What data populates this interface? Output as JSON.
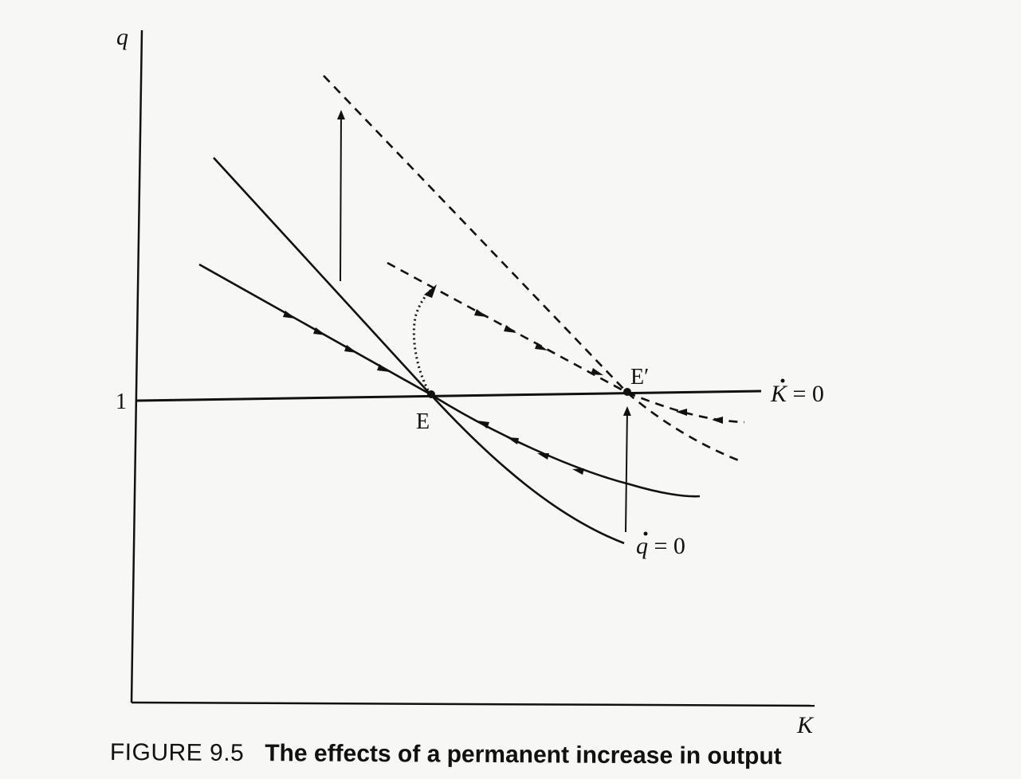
{
  "axes": {
    "y_label": "q",
    "x_label": "K",
    "y_tick": "1"
  },
  "points": {
    "E": "E",
    "E_prime": "E′"
  },
  "curves": {
    "k_dot_symbol": "K",
    "k_dot_rest": " = 0",
    "q_dot_symbol": "q",
    "q_dot_rest": " = 0"
  },
  "caption": {
    "number": "FIGURE 9.5",
    "title": "The effects of a permanent increase in output"
  },
  "colors": {
    "ink": "#111111",
    "paper": "#f7f7f5"
  }
}
